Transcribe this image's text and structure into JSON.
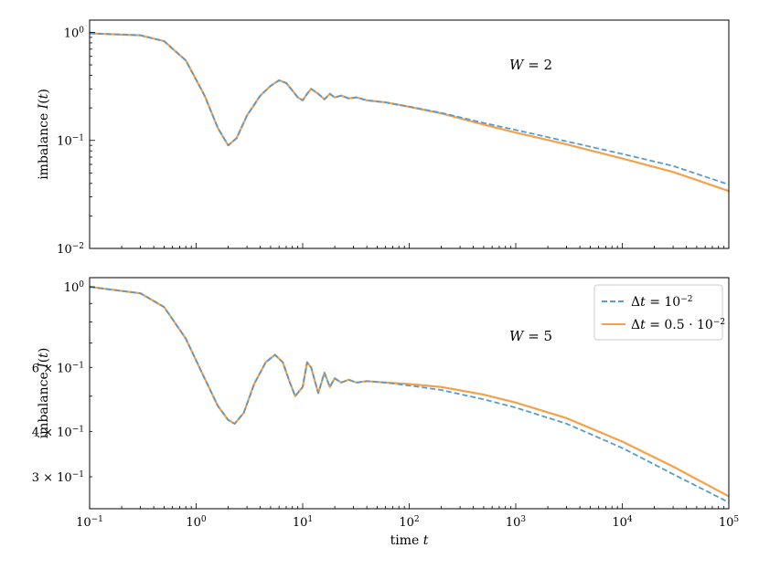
{
  "colors": {
    "series_dt1": "#5b9bc9",
    "series_dt2": "#f5a04a"
  },
  "chart_data": [
    {
      "type": "line",
      "xscale": "log",
      "yscale": "log",
      "xlim": [
        0.1,
        100000
      ],
      "ylim": [
        0.01,
        1.3
      ],
      "xlabel": "",
      "ylabel": "imbalance I(t)",
      "ylabel_parts": [
        "imbalance ",
        "I",
        "(",
        "t",
        ")"
      ],
      "annotation": {
        "var": "W",
        "rest": " = 2"
      },
      "ytick_labels": [
        {
          "value": 1,
          "base": "10",
          "exp": "0"
        },
        {
          "value": 0.1,
          "base": "10",
          "exp": "−1"
        },
        {
          "value": 0.01,
          "base": "10",
          "exp": "−2"
        }
      ],
      "series": [
        {
          "name": "Δt = 10^−2",
          "color": "#5b9bc9",
          "dashed": true,
          "x": [
            0.1,
            0.3,
            0.5,
            0.8,
            1.2,
            1.6,
            2.0,
            2.4,
            3.0,
            4.0,
            5.0,
            6.0,
            7.0,
            8.0,
            9.0,
            10.0,
            11.0,
            12.0,
            14.0,
            16.0,
            18.0,
            20.0,
            23.0,
            27.0,
            32.0,
            40.0,
            60.0,
            100.0,
            200.0,
            500.0,
            1000.0,
            3000.0,
            10000.0,
            30000.0,
            100000.0
          ],
          "y": [
            0.98,
            0.94,
            0.83,
            0.55,
            0.26,
            0.13,
            0.09,
            0.105,
            0.17,
            0.26,
            0.32,
            0.36,
            0.34,
            0.29,
            0.25,
            0.235,
            0.27,
            0.3,
            0.27,
            0.24,
            0.27,
            0.25,
            0.26,
            0.245,
            0.25,
            0.235,
            0.225,
            0.205,
            0.18,
            0.145,
            0.125,
            0.098,
            0.075,
            0.058,
            0.039
          ]
        },
        {
          "name": "Δt = 0.5·10^−2",
          "color": "#f5a04a",
          "dashed": false,
          "x": [
            0.1,
            0.3,
            0.5,
            0.8,
            1.2,
            1.6,
            2.0,
            2.4,
            3.0,
            4.0,
            5.0,
            6.0,
            7.0,
            8.0,
            9.0,
            10.0,
            11.0,
            12.0,
            14.0,
            16.0,
            18.0,
            20.0,
            23.0,
            27.0,
            32.0,
            40.0,
            60.0,
            100.0,
            200.0,
            500.0,
            1000.0,
            3000.0,
            10000.0,
            30000.0,
            100000.0
          ],
          "y": [
            0.98,
            0.94,
            0.83,
            0.55,
            0.26,
            0.13,
            0.09,
            0.105,
            0.17,
            0.26,
            0.32,
            0.36,
            0.34,
            0.29,
            0.25,
            0.235,
            0.27,
            0.3,
            0.27,
            0.24,
            0.27,
            0.25,
            0.26,
            0.245,
            0.25,
            0.235,
            0.225,
            0.205,
            0.178,
            0.14,
            0.118,
            0.092,
            0.068,
            0.051,
            0.034
          ]
        }
      ]
    },
    {
      "type": "line",
      "xscale": "log",
      "yscale": "log",
      "xlim": [
        0.1,
        100000
      ],
      "ylim": [
        0.245,
        1.06
      ],
      "xlabel": "time t",
      "xlabel_parts": [
        "time ",
        "t"
      ],
      "ylabel": "imbalance I(t)",
      "ylabel_parts": [
        "imbalance ",
        "I",
        "(",
        "t",
        ")"
      ],
      "annotation": {
        "var": "W",
        "rest": " = 5"
      },
      "ytick_labels": [
        {
          "value": 1,
          "base": "10",
          "exp": "0"
        },
        {
          "value": 0.6,
          "base": "6 × 10",
          "exp": "−1"
        },
        {
          "value": 0.4,
          "base": "4 × 10",
          "exp": "−1"
        },
        {
          "value": 0.3,
          "base": "3 × 10",
          "exp": "−1"
        }
      ],
      "xtick_labels": [
        {
          "value": 0.1,
          "base": "10",
          "exp": "−1"
        },
        {
          "value": 1,
          "base": "10",
          "exp": "0"
        },
        {
          "value": 10,
          "base": "10",
          "exp": "1"
        },
        {
          "value": 100,
          "base": "10",
          "exp": "2"
        },
        {
          "value": 1000,
          "base": "10",
          "exp": "3"
        },
        {
          "value": 10000,
          "base": "10",
          "exp": "4"
        },
        {
          "value": 100000,
          "base": "10",
          "exp": "5"
        }
      ],
      "legend": {
        "placement": "top-right",
        "entries": [
          {
            "sym": "Δ",
            "var": "t",
            "rest": " = 10",
            "sup": "−2",
            "color": "#5b9bc9",
            "dashed": true
          },
          {
            "sym": "Δ",
            "var": "t",
            "rest": " = 0.5 · 10",
            "sup": "−2",
            "color": "#f5a04a",
            "dashed": false
          }
        ]
      },
      "series": [
        {
          "name": "Δt = 10^−2",
          "color": "#5b9bc9",
          "dashed": true,
          "x": [
            0.1,
            0.3,
            0.5,
            0.8,
            1.2,
            1.6,
            2.0,
            2.3,
            2.8,
            3.5,
            4.5,
            5.5,
            6.5,
            7.5,
            8.5,
            10.0,
            11.0,
            12.0,
            14.0,
            16.0,
            18.0,
            20.0,
            23.0,
            27.0,
            32.0,
            40.0,
            60.0,
            100.0,
            200.0,
            500.0,
            1000.0,
            3000.0,
            10000.0,
            30000.0,
            100000.0
          ],
          "y": [
            1.0,
            0.96,
            0.88,
            0.72,
            0.56,
            0.47,
            0.43,
            0.42,
            0.45,
            0.54,
            0.62,
            0.65,
            0.62,
            0.55,
            0.5,
            0.53,
            0.62,
            0.6,
            0.51,
            0.58,
            0.53,
            0.56,
            0.545,
            0.555,
            0.545,
            0.55,
            0.545,
            0.535,
            0.52,
            0.49,
            0.465,
            0.42,
            0.36,
            0.305,
            0.255
          ]
        },
        {
          "name": "Δt = 0.5·10^−2",
          "color": "#f5a04a",
          "dashed": false,
          "x": [
            0.1,
            0.3,
            0.5,
            0.8,
            1.2,
            1.6,
            2.0,
            2.3,
            2.8,
            3.5,
            4.5,
            5.5,
            6.5,
            7.5,
            8.5,
            10.0,
            11.0,
            12.0,
            14.0,
            16.0,
            18.0,
            20.0,
            23.0,
            27.0,
            32.0,
            40.0,
            60.0,
            100.0,
            200.0,
            500.0,
            1000.0,
            3000.0,
            10000.0,
            30000.0,
            100000.0
          ],
          "y": [
            1.0,
            0.96,
            0.88,
            0.72,
            0.56,
            0.47,
            0.43,
            0.42,
            0.45,
            0.54,
            0.62,
            0.65,
            0.62,
            0.55,
            0.5,
            0.53,
            0.62,
            0.6,
            0.51,
            0.58,
            0.53,
            0.56,
            0.545,
            0.555,
            0.545,
            0.55,
            0.545,
            0.54,
            0.53,
            0.505,
            0.48,
            0.435,
            0.375,
            0.32,
            0.265
          ]
        }
      ]
    }
  ]
}
